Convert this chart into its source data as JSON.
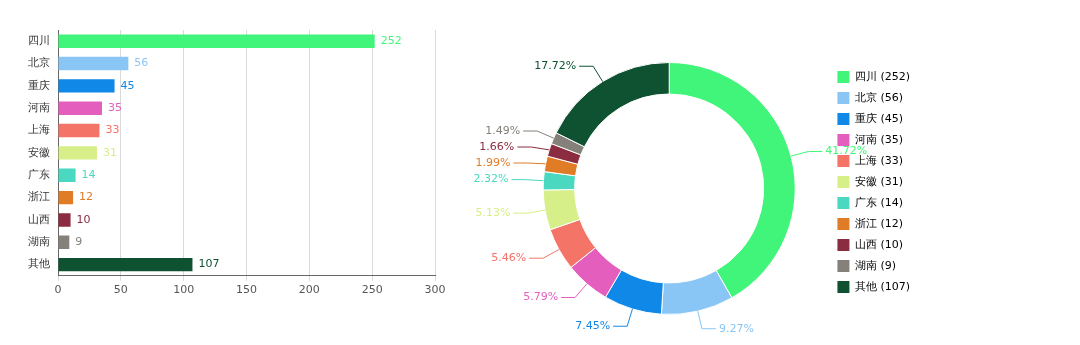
{
  "chart_data": [
    {
      "type": "bar",
      "orientation": "horizontal",
      "categories": [
        "四川",
        "北京",
        "重庆",
        "河南",
        "上海",
        "安徽",
        "广东",
        "浙江",
        "山西",
        "湖南",
        "其他"
      ],
      "values": [
        252,
        56,
        45,
        35,
        33,
        31,
        14,
        12,
        10,
        9,
        107
      ],
      "colors": [
        "#40f57a",
        "#8ac6f5",
        "#1088e8",
        "#e45fbd",
        "#f47468",
        "#d6ef88",
        "#4ad8c0",
        "#e07b26",
        "#8b2c40",
        "#85807a",
        "#0e5232"
      ],
      "xlim": [
        0,
        300
      ],
      "xticks": [
        0,
        50,
        100,
        150,
        200,
        250,
        300
      ],
      "grid": "x",
      "data_labels": true,
      "legend": false
    },
    {
      "type": "donut",
      "categories": [
        "四川 (252)",
        "北京 (56)",
        "重庆 (45)",
        "河南 (35)",
        "上海 (33)",
        "安徽 (31)",
        "广东 (14)",
        "浙江 (12)",
        "山西 (10)",
        "湖南 (9)",
        "其他 (107)"
      ],
      "values": [
        41.72,
        9.27,
        7.45,
        5.79,
        5.46,
        5.13,
        2.32,
        1.99,
        1.66,
        1.49,
        17.72
      ],
      "colors": [
        "#40f57a",
        "#8ac6f5",
        "#1088e8",
        "#e45fbd",
        "#f47468",
        "#d6ef88",
        "#4ad8c0",
        "#e07b26",
        "#8b2c40",
        "#85807a",
        "#0e5232"
      ],
      "value_labels": [
        "41.72%",
        "9.27%",
        "7.45%",
        "5.79%",
        "5.46%",
        "5.13%",
        "2.32%",
        "1.99%",
        "1.66%",
        "1.49%",
        "17.72%"
      ],
      "legend": "right"
    }
  ]
}
